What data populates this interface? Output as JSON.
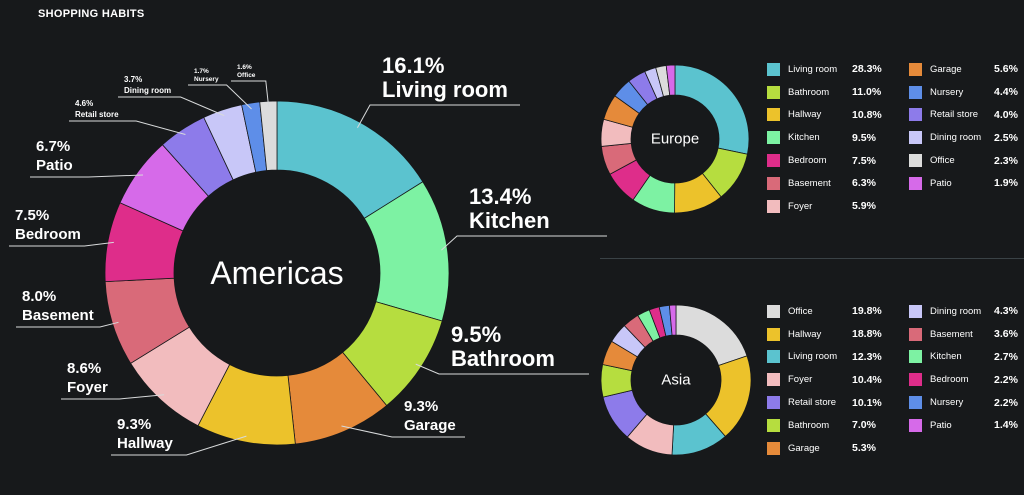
{
  "page_title": "SHOPPING HABITS",
  "chart_data": [
    {
      "type": "pie",
      "style": "donut",
      "title": "Americas",
      "labels": [
        "Living room",
        "Kitchen",
        "Bathroom",
        "Garage",
        "Hallway",
        "Foyer",
        "Basement",
        "Bedroom",
        "Patio",
        "Retail store",
        "Dining room",
        "Nursery",
        "Office"
      ],
      "values": [
        16.1,
        13.4,
        9.5,
        9.3,
        9.3,
        8.6,
        8.0,
        7.5,
        6.7,
        4.6,
        3.7,
        1.7,
        1.6
      ],
      "value_labels": [
        "16.1%",
        "13.4%",
        "9.5%",
        "9.3%",
        "9.3%",
        "8.6%",
        "8.0%",
        "7.5%",
        "6.7%",
        "4.6%",
        "3.7%",
        "1.7%",
        "1.6%"
      ],
      "colors": [
        "#5bc3cf",
        "#7df2a3",
        "#b6dd3f",
        "#e58a3a",
        "#ecc22b",
        "#f2bcbe",
        "#d96a79",
        "#de2d8a",
        "#d66ae9",
        "#8d7bea",
        "#c8c7f8",
        "#5e8ee8",
        "#dcdcdc"
      ]
    },
    {
      "type": "pie",
      "style": "donut",
      "title": "Europe",
      "labels": [
        "Living room",
        "Bathroom",
        "Hallway",
        "Kitchen",
        "Bedroom",
        "Basement",
        "Foyer",
        "Garage",
        "Nursery",
        "Retail store",
        "Dining room",
        "Office",
        "Patio"
      ],
      "values": [
        28.3,
        11.0,
        10.8,
        9.5,
        7.5,
        6.3,
        5.9,
        5.6,
        4.4,
        4.0,
        2.5,
        2.3,
        1.9
      ],
      "value_labels": [
        "28.3%",
        "11.0%",
        "10.8%",
        "9.5%",
        "7.5%",
        "6.3%",
        "5.9%",
        "5.6%",
        "4.4%",
        "4.0%",
        "2.5%",
        "2.3%",
        "1.9%"
      ],
      "colors": [
        "#5bc3cf",
        "#b6dd3f",
        "#ecc22b",
        "#7df2a3",
        "#de2d8a",
        "#d96a79",
        "#f2bcbe",
        "#e58a3a",
        "#5e8ee8",
        "#8d7bea",
        "#c8c7f8",
        "#dcdcdc",
        "#d66ae9"
      ]
    },
    {
      "type": "pie",
      "style": "donut",
      "title": "Asia",
      "labels": [
        "Office",
        "Hallway",
        "Living room",
        "Foyer",
        "Retail store",
        "Bathroom",
        "Garage",
        "Dining room",
        "Basement",
        "Kitchen",
        "Bedroom",
        "Nursery",
        "Patio"
      ],
      "values": [
        19.8,
        18.8,
        12.3,
        10.4,
        10.1,
        7.0,
        5.3,
        4.3,
        3.6,
        2.7,
        2.2,
        2.2,
        1.4
      ],
      "value_labels": [
        "19.8%",
        "18.8%",
        "12.3%",
        "10.4%",
        "10.1%",
        "7.0%",
        "5.3%",
        "4.3%",
        "3.6%",
        "2.7%",
        "2.2%",
        "2.2%",
        "1.4%"
      ],
      "colors": [
        "#dcdcdc",
        "#ecc22b",
        "#5bc3cf",
        "#f2bcbe",
        "#8d7bea",
        "#b6dd3f",
        "#e58a3a",
        "#c8c7f8",
        "#d96a79",
        "#7df2a3",
        "#de2d8a",
        "#5e8ee8",
        "#d66ae9"
      ]
    }
  ]
}
